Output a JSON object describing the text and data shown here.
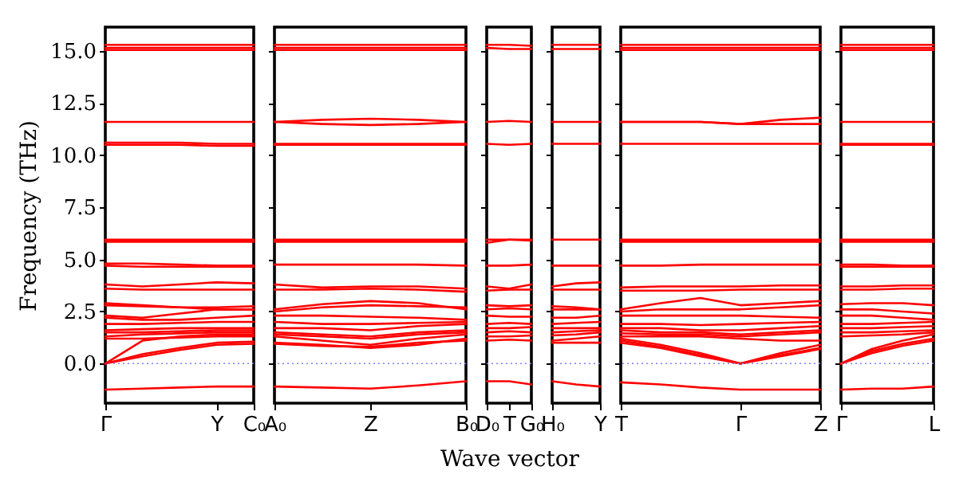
{
  "chart_data": [
    {
      "type": "line",
      "color": "#ff0000",
      "ylabel": "Frequency (THz)",
      "ylim": [
        -1.9,
        16.15
      ],
      "yticks": [
        {
          "value": 0,
          "label": "0.0"
        },
        {
          "value": 2.5,
          "label": "2.5"
        },
        {
          "value": 5,
          "label": "5.0"
        },
        {
          "value": 7.5,
          "label": "7.5"
        },
        {
          "value": 10,
          "label": "10.0"
        },
        {
          "value": 12.5,
          "label": "12.5"
        },
        {
          "value": 15,
          "label": "15.0"
        }
      ],
      "ref_lines": [
        {
          "axis": "y",
          "value": 0,
          "color": "#8080ff",
          "line_style": "dotted"
        }
      ],
      "categories": [
        "Γ",
        null,
        null,
        "Y",
        "C₀"
      ],
      "series": [
        {
          "values": [
            15.3,
            15.3,
            15.3,
            15.3,
            15.3
          ]
        },
        {
          "values": [
            15.15,
            15.15,
            15.15,
            15.15,
            15.15
          ]
        },
        {
          "values": [
            15.05,
            15.05,
            15.05,
            15.05,
            15.05
          ]
        },
        {
          "values": [
            11.6,
            11.6,
            11.6,
            11.6,
            11.6
          ]
        },
        {
          "values": [
            10.6,
            10.6,
            10.6,
            10.55,
            10.55
          ]
        },
        {
          "values": [
            10.5,
            10.5,
            10.5,
            10.45,
            10.45
          ]
        },
        {
          "values": [
            5.95,
            5.95,
            5.95,
            5.95,
            5.95
          ]
        },
        {
          "values": [
            5.85,
            5.85,
            5.85,
            5.85,
            5.85
          ]
        },
        {
          "values": [
            4.8,
            4.8,
            4.75,
            4.7,
            4.7
          ]
        },
        {
          "values": [
            4.7,
            4.65,
            4.65,
            4.65,
            4.65
          ]
        },
        {
          "values": [
            3.8,
            3.7,
            3.8,
            3.9,
            3.85
          ]
        },
        {
          "values": [
            3.6,
            3.55,
            3.55,
            3.55,
            3.55
          ]
        },
        {
          "values": [
            2.9,
            2.8,
            2.7,
            2.6,
            2.6
          ]
        },
        {
          "values": [
            2.8,
            2.75,
            2.7,
            2.7,
            2.75
          ]
        },
        {
          "values": [
            2.3,
            2.2,
            2.4,
            2.6,
            2.6
          ]
        },
        {
          "values": [
            2.2,
            2.1,
            2.1,
            2.2,
            2.3
          ]
        },
        {
          "values": [
            1.9,
            1.9,
            1.95,
            2.0,
            2.0
          ]
        },
        {
          "values": [
            1.6,
            1.65,
            1.7,
            1.7,
            1.7
          ]
        },
        {
          "values": [
            1.5,
            1.5,
            1.55,
            1.6,
            1.6
          ]
        },
        {
          "values": [
            1.3,
            1.4,
            1.45,
            1.5,
            1.5
          ]
        },
        {
          "values": [
            1.2,
            1.2,
            1.25,
            1.3,
            1.3
          ]
        },
        {
          "values": [
            0,
            1.1,
            1.3,
            1.4,
            1.4
          ]
        },
        {
          "values": [
            0,
            0.45,
            0.75,
            1.0,
            1.05
          ]
        },
        {
          "values": [
            0,
            0.35,
            0.65,
            0.9,
            0.95
          ]
        },
        {
          "values": [
            -1.25,
            -1.2,
            -1.15,
            -1.1,
            -1.1
          ]
        }
      ]
    },
    {
      "type": "line",
      "color": "#ff0000",
      "tick_labels": "x",
      "ylim": [
        -1.9,
        16.15
      ],
      "yticks": [
        0,
        2.5,
        5,
        7.5,
        10,
        12.5,
        15
      ],
      "ref_lines": [
        {
          "axis": "y",
          "value": 0,
          "color": "#8080ff",
          "line_style": "dotted"
        }
      ],
      "categories": [
        "A₀",
        null,
        "Z",
        null,
        "B₀"
      ],
      "series": [
        {
          "values": [
            15.3,
            15.3,
            15.3,
            15.3,
            15.3
          ]
        },
        {
          "values": [
            15.15,
            15.15,
            15.15,
            15.15,
            15.15
          ]
        },
        {
          "values": [
            15.05,
            15.05,
            15.05,
            15.05,
            15.05
          ]
        },
        {
          "values": [
            11.6,
            11.7,
            11.75,
            11.7,
            11.6
          ]
        },
        {
          "values": [
            11.6,
            11.5,
            11.45,
            11.5,
            11.6
          ]
        },
        {
          "values": [
            10.55,
            10.55,
            10.55,
            10.55,
            10.55
          ]
        },
        {
          "values": [
            10.5,
            10.5,
            10.5,
            10.5,
            10.5
          ]
        },
        {
          "values": [
            5.95,
            5.95,
            5.95,
            5.95,
            5.95
          ]
        },
        {
          "values": [
            5.85,
            5.85,
            5.85,
            5.85,
            5.85
          ]
        },
        {
          "values": [
            4.75,
            4.75,
            4.75,
            4.75,
            4.7
          ]
        },
        {
          "values": [
            3.8,
            3.65,
            3.7,
            3.7,
            3.6
          ]
        },
        {
          "values": [
            3.55,
            3.55,
            3.6,
            3.55,
            3.45
          ]
        },
        {
          "values": [
            2.6,
            2.85,
            3.0,
            2.9,
            2.6
          ]
        },
        {
          "values": [
            2.5,
            2.7,
            2.8,
            2.75,
            2.7
          ]
        },
        {
          "values": [
            2.3,
            2.3,
            2.25,
            2.2,
            2.1
          ]
        },
        {
          "values": [
            2.0,
            1.9,
            1.9,
            1.95,
            2.0
          ]
        },
        {
          "values": [
            1.7,
            1.7,
            1.6,
            1.8,
            1.9
          ]
        },
        {
          "values": [
            1.5,
            1.4,
            1.3,
            1.5,
            1.6
          ]
        },
        {
          "values": [
            1.4,
            1.3,
            1.2,
            1.4,
            1.5
          ]
        },
        {
          "values": [
            1.3,
            1.1,
            0.9,
            1.2,
            1.4
          ]
        },
        {
          "values": [
            1.0,
            0.9,
            0.75,
            0.9,
            1.2
          ]
        },
        {
          "values": [
            0.95,
            0.85,
            0.8,
            1.0,
            1.1
          ]
        },
        {
          "values": [
            -1.1,
            -1.15,
            -1.2,
            -1.05,
            -0.85
          ]
        }
      ]
    },
    {
      "type": "line",
      "color": "#ff0000",
      "tick_labels": "x",
      "xlabel": "Wave vector",
      "ylim": [
        -1.9,
        16.15
      ],
      "yticks": [
        0,
        2.5,
        5,
        7.5,
        10,
        12.5,
        15
      ],
      "ref_lines": [
        {
          "axis": "y",
          "value": 0,
          "color": "#8080ff",
          "line_style": "dotted"
        }
      ],
      "categories": [
        "D₀",
        "T",
        "G₀"
      ],
      "series": [
        {
          "values": [
            15.3,
            15.3,
            15.25
          ]
        },
        {
          "values": [
            15.15,
            15.1,
            15.1
          ]
        },
        {
          "values": [
            11.6,
            11.65,
            11.6
          ]
        },
        {
          "values": [
            10.55,
            10.5,
            10.55
          ]
        },
        {
          "values": [
            5.95,
            5.95,
            5.9
          ]
        },
        {
          "values": [
            5.8,
            5.95,
            5.95
          ]
        },
        {
          "values": [
            4.7,
            4.7,
            4.75
          ]
        },
        {
          "values": [
            3.7,
            3.6,
            3.8
          ]
        },
        {
          "values": [
            3.5,
            3.55,
            3.55
          ]
        },
        {
          "values": [
            2.8,
            2.75,
            2.8
          ]
        },
        {
          "values": [
            2.6,
            2.65,
            2.6
          ]
        },
        {
          "values": [
            2.3,
            2.25,
            2.25
          ]
        },
        {
          "values": [
            1.9,
            1.95,
            1.9
          ]
        },
        {
          "values": [
            1.7,
            1.7,
            1.75
          ]
        },
        {
          "values": [
            1.5,
            1.55,
            1.5
          ]
        },
        {
          "values": [
            1.3,
            1.3,
            1.35
          ]
        },
        {
          "values": [
            1.1,
            1.15,
            1.1
          ]
        },
        {
          "values": [
            -0.85,
            -0.85,
            -1.0
          ]
        }
      ]
    },
    {
      "type": "line",
      "color": "#ff0000",
      "tick_labels": "x",
      "ylim": [
        -1.9,
        16.15
      ],
      "yticks": [
        0,
        2.5,
        5,
        7.5,
        10,
        12.5,
        15
      ],
      "ref_lines": [
        {
          "axis": "y",
          "value": 0,
          "color": "#8080ff",
          "line_style": "dotted"
        }
      ],
      "categories": [
        "H₀",
        null,
        "Y"
      ],
      "series": [
        {
          "values": [
            15.3,
            15.3,
            15.3
          ]
        },
        {
          "values": [
            15.1,
            15.1,
            15.1
          ]
        },
        {
          "values": [
            11.6,
            11.6,
            11.6
          ]
        },
        {
          "values": [
            10.55,
            10.55,
            10.55
          ]
        },
        {
          "values": [
            5.95,
            5.95,
            5.95
          ]
        },
        {
          "values": [
            4.7,
            4.7,
            4.7
          ]
        },
        {
          "values": [
            3.7,
            3.85,
            3.9
          ]
        },
        {
          "values": [
            3.55,
            3.55,
            3.55
          ]
        },
        {
          "values": [
            2.75,
            2.7,
            2.6
          ]
        },
        {
          "values": [
            2.6,
            2.6,
            2.6
          ]
        },
        {
          "values": [
            2.2,
            2.2,
            2.3
          ]
        },
        {
          "values": [
            1.9,
            1.95,
            2.0
          ]
        },
        {
          "values": [
            1.7,
            1.7,
            1.7
          ]
        },
        {
          "values": [
            1.5,
            1.55,
            1.6
          ]
        },
        {
          "values": [
            1.35,
            1.4,
            1.5
          ]
        },
        {
          "values": [
            1.1,
            1.2,
            1.3
          ]
        },
        {
          "values": [
            1.0,
            1.0,
            1.0
          ]
        },
        {
          "values": [
            -0.85,
            -1.0,
            -1.1
          ]
        }
      ]
    },
    {
      "type": "line",
      "color": "#ff0000",
      "tick_labels": "x",
      "ylim": [
        -1.9,
        16.15
      ],
      "yticks": [
        0,
        2.5,
        5,
        7.5,
        10,
        12.5,
        15
      ],
      "ref_lines": [
        {
          "axis": "y",
          "value": 0,
          "color": "#8080ff",
          "line_style": "dotted"
        }
      ],
      "categories": [
        "T",
        null,
        null,
        "Γ",
        null,
        "Z"
      ],
      "series": [
        {
          "values": [
            15.3,
            15.3,
            15.3,
            15.3,
            15.3,
            15.3
          ]
        },
        {
          "values": [
            15.15,
            15.15,
            15.15,
            15.15,
            15.15,
            15.15
          ]
        },
        {
          "values": [
            15.05,
            15.05,
            15.05,
            15.05,
            15.05,
            15.05
          ]
        },
        {
          "values": [
            11.6,
            11.6,
            11.6,
            11.5,
            11.7,
            11.8
          ]
        },
        {
          "values": [
            11.6,
            11.6,
            11.6,
            11.5,
            11.5,
            11.5
          ]
        },
        {
          "values": [
            10.55,
            10.55,
            10.55,
            10.55,
            10.55,
            10.55
          ]
        },
        {
          "values": [
            5.95,
            5.95,
            5.95,
            5.95,
            5.95,
            5.95
          ]
        },
        {
          "values": [
            5.85,
            5.85,
            5.85,
            5.85,
            5.85,
            5.85
          ]
        },
        {
          "values": [
            4.7,
            4.7,
            4.75,
            4.75,
            4.75,
            4.75
          ]
        },
        {
          "values": [
            3.65,
            3.7,
            3.7,
            3.7,
            3.75,
            3.75
          ]
        },
        {
          "values": [
            3.5,
            3.5,
            3.5,
            3.55,
            3.55,
            3.55
          ]
        },
        {
          "values": [
            2.6,
            2.9,
            3.15,
            2.8,
            2.9,
            3.0
          ]
        },
        {
          "values": [
            2.5,
            2.6,
            2.6,
            2.6,
            2.7,
            2.8
          ]
        },
        {
          "values": [
            2.3,
            2.3,
            2.3,
            2.3,
            2.25,
            2.2
          ]
        },
        {
          "values": [
            1.9,
            1.9,
            1.85,
            1.9,
            1.95,
            2.0
          ]
        },
        {
          "values": [
            1.7,
            1.7,
            1.6,
            1.6,
            1.7,
            1.8
          ]
        },
        {
          "values": [
            1.6,
            1.5,
            1.5,
            1.4,
            1.5,
            1.6
          ]
        },
        {
          "values": [
            1.45,
            1.4,
            1.4,
            1.3,
            1.4,
            1.5
          ]
        },
        {
          "values": [
            1.3,
            1.3,
            1.3,
            1.2,
            1.1,
            1.1
          ]
        },
        {
          "values": [
            1.2,
            0.9,
            0.5,
            0,
            0.5,
            0.9
          ]
        },
        {
          "values": [
            1.1,
            0.8,
            0.4,
            0,
            0.4,
            0.75
          ]
        },
        {
          "values": [
            1.0,
            0.75,
            0.35,
            0,
            0.35,
            0.7
          ]
        },
        {
          "values": [
            -0.9,
            -1.0,
            -1.15,
            -1.25,
            -1.25,
            -1.25
          ]
        }
      ]
    },
    {
      "type": "line",
      "color": "#ff0000",
      "tick_labels": "x",
      "ylim": [
        -1.9,
        16.15
      ],
      "yticks": [
        0,
        2.5,
        5,
        7.5,
        10,
        12.5,
        15
      ],
      "ref_lines": [
        {
          "axis": "y",
          "value": 0,
          "color": "#8080ff",
          "line_style": "dotted"
        }
      ],
      "categories": [
        "Γ",
        null,
        null,
        "L"
      ],
      "series": [
        {
          "values": [
            15.3,
            15.3,
            15.3,
            15.3
          ]
        },
        {
          "values": [
            15.15,
            15.15,
            15.15,
            15.15
          ]
        },
        {
          "values": [
            15.05,
            15.05,
            15.05,
            15.05
          ]
        },
        {
          "values": [
            11.6,
            11.6,
            11.6,
            11.6
          ]
        },
        {
          "values": [
            10.55,
            10.55,
            10.55,
            10.55
          ]
        },
        {
          "values": [
            10.5,
            10.5,
            10.5,
            10.5
          ]
        },
        {
          "values": [
            5.95,
            5.95,
            5.95,
            5.95
          ]
        },
        {
          "values": [
            5.85,
            5.85,
            5.85,
            5.85
          ]
        },
        {
          "values": [
            4.75,
            4.75,
            4.7,
            4.7
          ]
        },
        {
          "values": [
            4.65,
            4.65,
            4.65,
            4.65
          ]
        },
        {
          "values": [
            3.7,
            3.7,
            3.75,
            3.75
          ]
        },
        {
          "values": [
            3.55,
            3.55,
            3.6,
            3.6
          ]
        },
        {
          "values": [
            2.85,
            2.9,
            2.9,
            2.8
          ]
        },
        {
          "values": [
            2.6,
            2.6,
            2.5,
            2.4
          ]
        },
        {
          "values": [
            2.3,
            2.3,
            2.2,
            2.1
          ]
        },
        {
          "values": [
            1.9,
            1.9,
            1.95,
            2.0
          ]
        },
        {
          "values": [
            1.7,
            1.7,
            1.75,
            1.8
          ]
        },
        {
          "values": [
            1.5,
            1.5,
            1.55,
            1.6
          ]
        },
        {
          "values": [
            1.3,
            1.35,
            1.4,
            1.5
          ]
        },
        {
          "values": [
            0,
            0.7,
            1.1,
            1.4
          ]
        },
        {
          "values": [
            0,
            0.6,
            0.95,
            1.2
          ]
        },
        {
          "values": [
            0,
            0.5,
            0.85,
            1.1
          ]
        },
        {
          "values": [
            -1.25,
            -1.2,
            -1.2,
            -1.1
          ]
        }
      ]
    }
  ]
}
